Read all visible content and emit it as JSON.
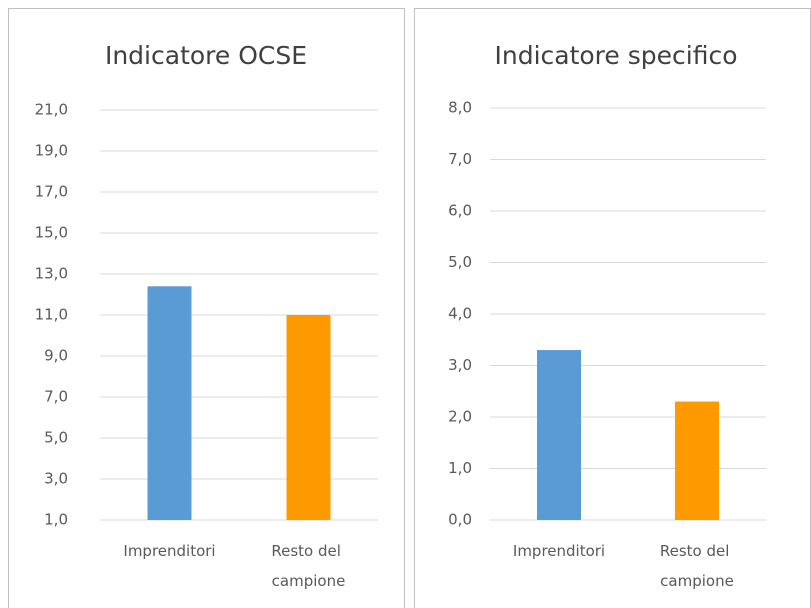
{
  "chart_data": [
    {
      "type": "bar",
      "title": "Indicatore OCSE",
      "categories": [
        "Imprenditori",
        "Resto del campione"
      ],
      "values": [
        12.4,
        11.0
      ],
      "colors": [
        "#5b9bd5",
        "#ff9900"
      ],
      "ylim": [
        1,
        21
      ],
      "yticks": [
        {
          "value": 1,
          "label": "1,0"
        },
        {
          "value": 3,
          "label": "3,0"
        },
        {
          "value": 5,
          "label": "5,0"
        },
        {
          "value": 7,
          "label": "7,0"
        },
        {
          "value": 9,
          "label": "9,0"
        },
        {
          "value": 11,
          "label": "11,0"
        },
        {
          "value": 13,
          "label": "13,0"
        },
        {
          "value": 15,
          "label": "15,0"
        },
        {
          "value": 17,
          "label": "17,0"
        },
        {
          "value": 19,
          "label": "19,0"
        },
        {
          "value": 21,
          "label": "21,0"
        }
      ],
      "grid": true
    },
    {
      "type": "bar",
      "title": "Indicatore specifico",
      "categories": [
        "Imprenditori",
        "Resto del campione"
      ],
      "values": [
        3.3,
        2.3
      ],
      "colors": [
        "#5b9bd5",
        "#ff9900"
      ],
      "ylim": [
        0,
        8
      ],
      "yticks": [
        {
          "value": 0,
          "label": "0,0"
        },
        {
          "value": 1,
          "label": "1,0"
        },
        {
          "value": 2,
          "label": "2,0"
        },
        {
          "value": 3,
          "label": "3,0"
        },
        {
          "value": 4,
          "label": "4,0"
        },
        {
          "value": 5,
          "label": "5,0"
        },
        {
          "value": 6,
          "label": "6,0"
        },
        {
          "value": 7,
          "label": "7,0"
        },
        {
          "value": 8,
          "label": "8,0"
        }
      ],
      "grid": true
    }
  ]
}
